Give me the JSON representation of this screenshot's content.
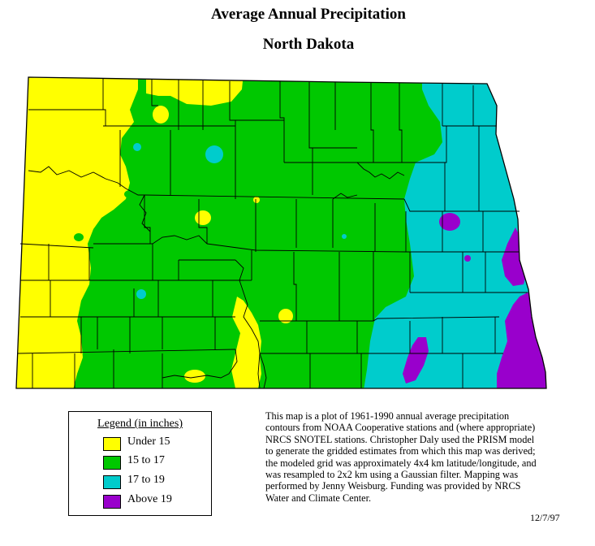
{
  "title": "Average Annual Precipitation",
  "subtitle": "North Dakota",
  "legend": {
    "title": "Legend (in inches)",
    "items": [
      {
        "label": "Under 15",
        "color": "#FFFF00"
      },
      {
        "label": "15 to 17",
        "color": "#00C800"
      },
      {
        "label": "17 to 19",
        "color": "#00CCCC"
      },
      {
        "label": "Above 19",
        "color": "#9900CC"
      }
    ]
  },
  "note": "This map is a plot of 1961-1990 annual average precipitation contours from NOAA Cooperative stations and (where appropriate) NRCS SNOTEL stations. Christopher Daly used the PRISM model to generate the gridded estimates from which this map was derived; the modeled grid was approximately 4x4 km latitude/longitude, and was resampled to 2x2 km using a Gaussian filter. Mapping was performed by Jenny Weisburg. Funding was provided by NRCS Water and Climate Center.",
  "date": "12/7/97"
}
